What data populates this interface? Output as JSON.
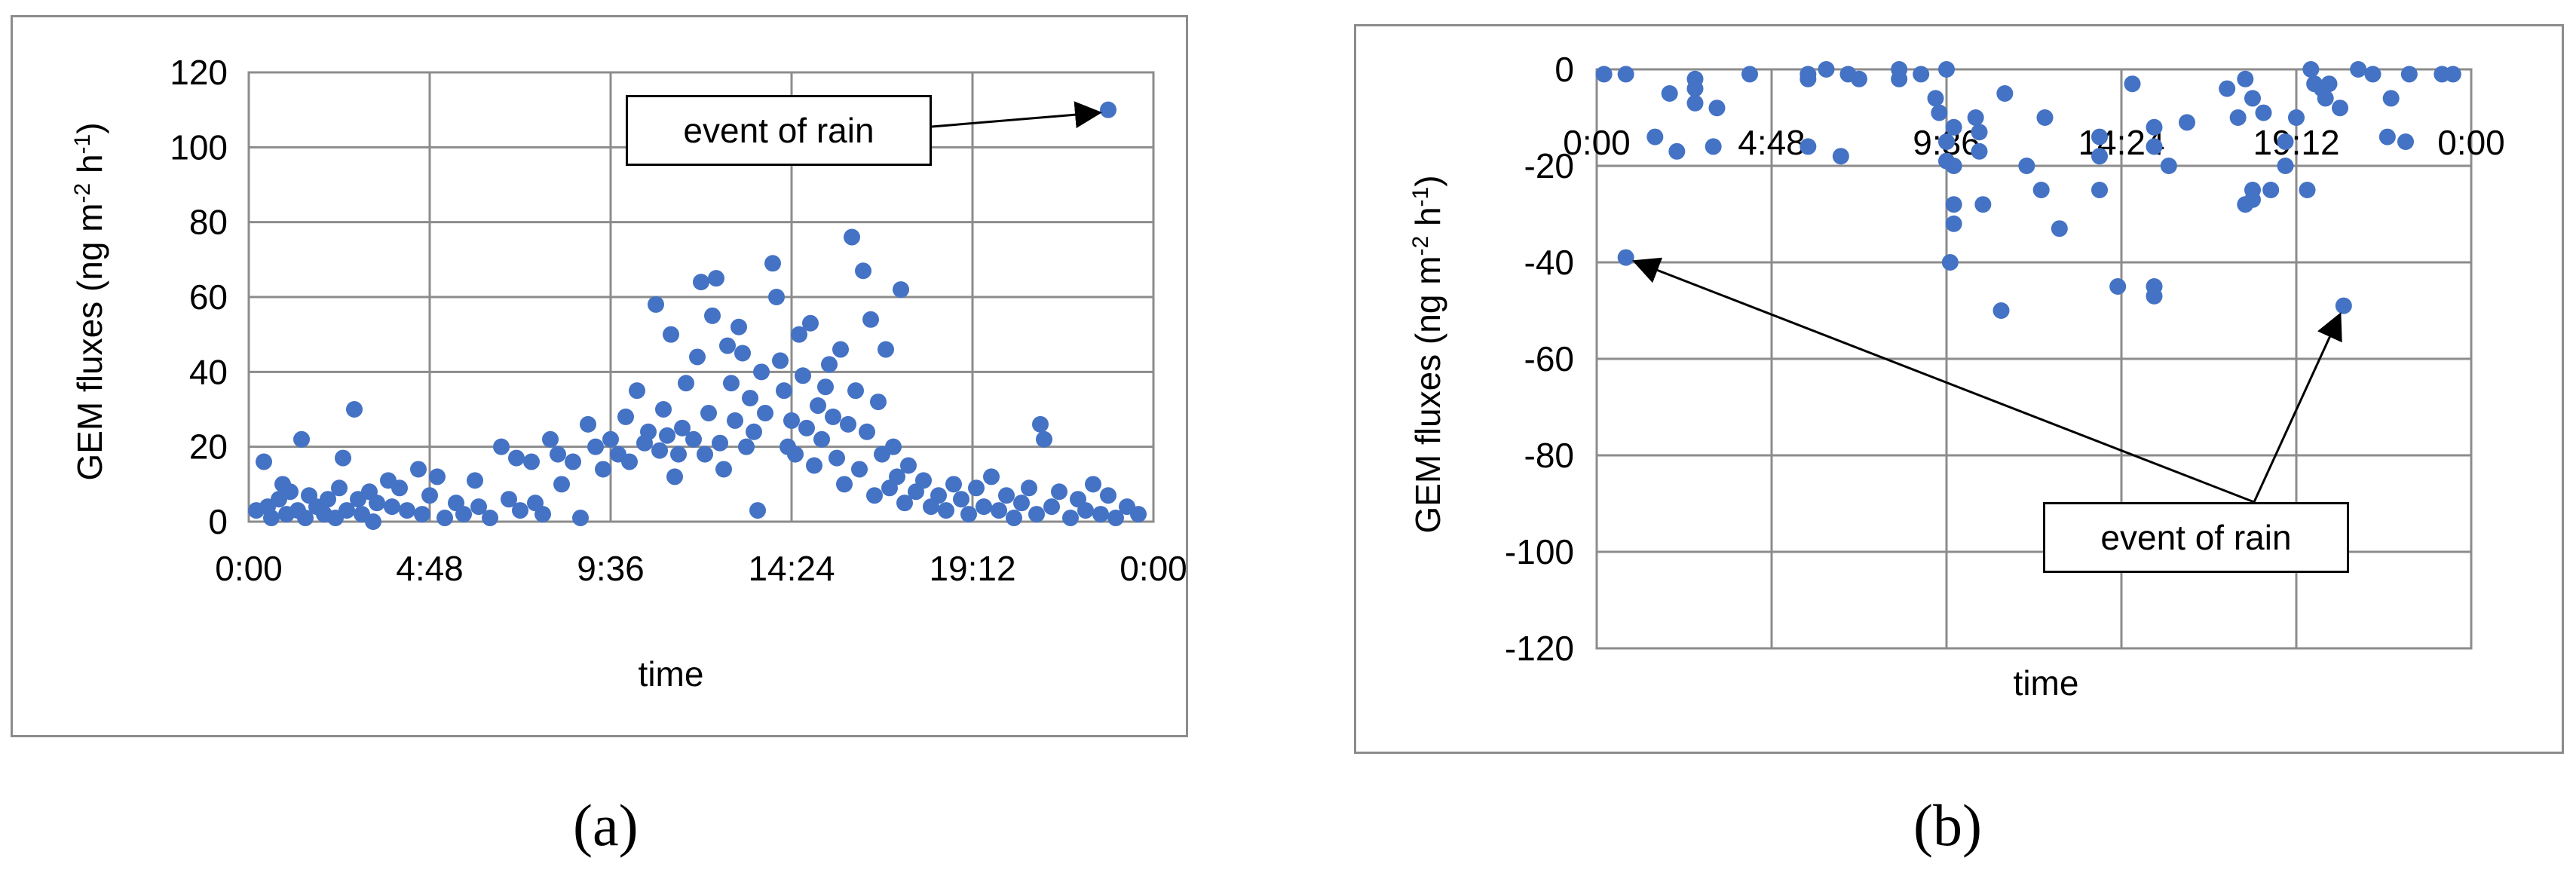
{
  "chart_data": [
    {
      "panel": "(a)",
      "type": "scatter",
      "title": "",
      "xlabel": "time",
      "ylabel": "GEM fluxes (ng m-2 h-1)",
      "ylabel_parts": {
        "main": "GEM fluxes (ng m",
        "exp1": "-2",
        "mid": " h",
        "exp2": "-1",
        "end": ")"
      },
      "xlim": [
        0,
        24
      ],
      "ylim": [
        0,
        120
      ],
      "x_ticks": [
        "0:00",
        "4:48",
        "9:36",
        "14:24",
        "19:12",
        "0:00"
      ],
      "y_ticks": [
        "0",
        "20",
        "40",
        "60",
        "80",
        "100",
        "120"
      ],
      "grid": true,
      "color": "#4472C4",
      "annotation": {
        "text": "event of rain",
        "point": [
          22.8,
          110
        ]
      },
      "points": [
        [
          0.2,
          3
        ],
        [
          0.4,
          16
        ],
        [
          0.5,
          4
        ],
        [
          0.6,
          1
        ],
        [
          0.8,
          6
        ],
        [
          0.9,
          10
        ],
        [
          1.0,
          2
        ],
        [
          1.1,
          8
        ],
        [
          1.3,
          3
        ],
        [
          1.4,
          22
        ],
        [
          1.5,
          1
        ],
        [
          1.6,
          7
        ],
        [
          1.8,
          4
        ],
        [
          2.0,
          2
        ],
        [
          2.1,
          6
        ],
        [
          2.3,
          1
        ],
        [
          2.4,
          9
        ],
        [
          2.5,
          17
        ],
        [
          2.6,
          3
        ],
        [
          2.8,
          30
        ],
        [
          2.9,
          6
        ],
        [
          3.0,
          2
        ],
        [
          3.2,
          8
        ],
        [
          3.3,
          0
        ],
        [
          3.4,
          5
        ],
        [
          3.7,
          11
        ],
        [
          3.8,
          4
        ],
        [
          4.0,
          9
        ],
        [
          4.2,
          3
        ],
        [
          4.5,
          14
        ],
        [
          4.6,
          2
        ],
        [
          4.8,
          7
        ],
        [
          5.0,
          12
        ],
        [
          5.2,
          1
        ],
        [
          5.5,
          5
        ],
        [
          5.7,
          2
        ],
        [
          6.0,
          11
        ],
        [
          6.1,
          4
        ],
        [
          6.4,
          1
        ],
        [
          6.7,
          20
        ],
        [
          6.9,
          6
        ],
        [
          7.1,
          17
        ],
        [
          7.2,
          3
        ],
        [
          7.5,
          16
        ],
        [
          7.6,
          5
        ],
        [
          7.8,
          2
        ],
        [
          8.0,
          22
        ],
        [
          8.2,
          18
        ],
        [
          8.3,
          10
        ],
        [
          8.6,
          16
        ],
        [
          8.8,
          1
        ],
        [
          9.0,
          26
        ],
        [
          9.2,
          20
        ],
        [
          9.4,
          14
        ],
        [
          9.6,
          22
        ],
        [
          9.8,
          18
        ],
        [
          10.0,
          28
        ],
        [
          10.1,
          16
        ],
        [
          10.3,
          35
        ],
        [
          10.5,
          21
        ],
        [
          10.6,
          24
        ],
        [
          10.8,
          58
        ],
        [
          10.9,
          19
        ],
        [
          11.0,
          30
        ],
        [
          11.1,
          23
        ],
        [
          11.2,
          50
        ],
        [
          11.3,
          12
        ],
        [
          11.4,
          18
        ],
        [
          11.5,
          25
        ],
        [
          11.6,
          37
        ],
        [
          11.8,
          22
        ],
        [
          11.9,
          44
        ],
        [
          12.0,
          64
        ],
        [
          12.1,
          18
        ],
        [
          12.2,
          29
        ],
        [
          12.3,
          55
        ],
        [
          12.4,
          65
        ],
        [
          12.5,
          21
        ],
        [
          12.6,
          14
        ],
        [
          12.7,
          47
        ],
        [
          12.8,
          37
        ],
        [
          12.9,
          27
        ],
        [
          13.0,
          52
        ],
        [
          13.1,
          45
        ],
        [
          13.2,
          20
        ],
        [
          13.3,
          33
        ],
        [
          13.4,
          24
        ],
        [
          13.5,
          3
        ],
        [
          13.6,
          40
        ],
        [
          13.7,
          29
        ],
        [
          13.9,
          69
        ],
        [
          14.0,
          60
        ],
        [
          14.1,
          43
        ],
        [
          14.2,
          35
        ],
        [
          14.3,
          20
        ],
        [
          14.4,
          27
        ],
        [
          14.5,
          18
        ],
        [
          14.6,
          50
        ],
        [
          14.7,
          39
        ],
        [
          14.8,
          25
        ],
        [
          14.9,
          53
        ],
        [
          15.0,
          15
        ],
        [
          15.1,
          31
        ],
        [
          15.2,
          22
        ],
        [
          15.3,
          36
        ],
        [
          15.4,
          42
        ],
        [
          15.5,
          28
        ],
        [
          15.6,
          17
        ],
        [
          15.7,
          46
        ],
        [
          15.8,
          10
        ],
        [
          15.9,
          26
        ],
        [
          16.0,
          76
        ],
        [
          16.1,
          35
        ],
        [
          16.2,
          14
        ],
        [
          16.3,
          67
        ],
        [
          16.4,
          24
        ],
        [
          16.5,
          54
        ],
        [
          16.6,
          7
        ],
        [
          16.7,
          32
        ],
        [
          16.8,
          18
        ],
        [
          16.9,
          46
        ],
        [
          17.0,
          9
        ],
        [
          17.1,
          20
        ],
        [
          17.2,
          12
        ],
        [
          17.3,
          62
        ],
        [
          17.4,
          5
        ],
        [
          17.5,
          15
        ],
        [
          17.7,
          8
        ],
        [
          17.9,
          11
        ],
        [
          18.1,
          4
        ],
        [
          18.3,
          7
        ],
        [
          18.5,
          3
        ],
        [
          18.7,
          10
        ],
        [
          18.9,
          6
        ],
        [
          19.1,
          2
        ],
        [
          19.3,
          9
        ],
        [
          19.5,
          4
        ],
        [
          19.7,
          12
        ],
        [
          19.9,
          3
        ],
        [
          20.1,
          7
        ],
        [
          20.3,
          1
        ],
        [
          20.5,
          5
        ],
        [
          20.7,
          9
        ],
        [
          20.9,
          2
        ],
        [
          21.0,
          26
        ],
        [
          21.1,
          22
        ],
        [
          21.3,
          4
        ],
        [
          21.5,
          8
        ],
        [
          21.8,
          1
        ],
        [
          22.0,
          6
        ],
        [
          22.2,
          3
        ],
        [
          22.4,
          10
        ],
        [
          22.6,
          2
        ],
        [
          22.8,
          7
        ],
        [
          23.0,
          1
        ],
        [
          23.3,
          4
        ],
        [
          23.6,
          2
        ],
        [
          22.8,
          110
        ]
      ]
    },
    {
      "panel": "(b)",
      "type": "scatter",
      "title": "",
      "xlabel": "time",
      "ylabel": "GEM fluxes (ng m-2 h-1)",
      "ylabel_parts": {
        "main": "GEM fluxes (ng m",
        "exp1": "-2",
        "mid": " h",
        "exp2": "-1",
        "end": ")"
      },
      "xlim": [
        0,
        24
      ],
      "ylim": [
        -120,
        0
      ],
      "x_ticks": [
        "0:00",
        "4:48",
        "9:36",
        "14:24",
        "19:12",
        "0:00"
      ],
      "y_ticks": [
        "0",
        "-20",
        "-40",
        "-60",
        "-80",
        "-100",
        "-120"
      ],
      "grid": true,
      "color": "#4472C4",
      "annotation": {
        "text": "event of rain",
        "points": [
          [
            0.8,
            -39
          ],
          [
            20.5,
            -49
          ]
        ]
      },
      "points": [
        [
          0.2,
          -1
        ],
        [
          0.8,
          -1
        ],
        [
          1.6,
          -14
        ],
        [
          2.2,
          -17
        ],
        [
          2.0,
          -5
        ],
        [
          2.7,
          -2
        ],
        [
          2.7,
          -4
        ],
        [
          2.7,
          -7
        ],
        [
          3.3,
          -8
        ],
        [
          3.2,
          -16
        ],
        [
          4.2,
          -1
        ],
        [
          5.8,
          -1
        ],
        [
          5.8,
          -2
        ],
        [
          5.8,
          -16
        ],
        [
          6.3,
          0
        ],
        [
          6.7,
          -18
        ],
        [
          6.9,
          -1
        ],
        [
          7.2,
          -2
        ],
        [
          8.3,
          0
        ],
        [
          8.3,
          -2
        ],
        [
          8.9,
          -1
        ],
        [
          9.6,
          0
        ],
        [
          9.3,
          -6
        ],
        [
          9.4,
          -9
        ],
        [
          9.6,
          -15
        ],
        [
          9.6,
          -19
        ],
        [
          9.8,
          -12
        ],
        [
          9.8,
          -20
        ],
        [
          9.8,
          -28
        ],
        [
          9.8,
          -32
        ],
        [
          9.7,
          -40
        ],
        [
          10.4,
          -10
        ],
        [
          10.5,
          -13
        ],
        [
          10.5,
          -17
        ],
        [
          10.6,
          -28
        ],
        [
          11.2,
          -5
        ],
        [
          11.1,
          -50
        ],
        [
          11.8,
          -20
        ],
        [
          12.3,
          -10
        ],
        [
          12.2,
          -25
        ],
        [
          12.7,
          -33
        ],
        [
          13.8,
          -14
        ],
        [
          13.8,
          -18
        ],
        [
          13.8,
          -25
        ],
        [
          14.3,
          -45
        ],
        [
          14.7,
          -3
        ],
        [
          15.3,
          -12
        ],
        [
          15.3,
          -16
        ],
        [
          15.3,
          -45
        ],
        [
          15.3,
          -47
        ],
        [
          15.7,
          -20
        ],
        [
          16.2,
          -11
        ],
        [
          17.3,
          -4
        ],
        [
          17.6,
          -10
        ],
        [
          17.8,
          -2
        ],
        [
          17.8,
          -28
        ],
        [
          18.0,
          -6
        ],
        [
          18.0,
          -25
        ],
        [
          18.0,
          -27
        ],
        [
          18.3,
          -9
        ],
        [
          18.5,
          -25
        ],
        [
          18.9,
          -15
        ],
        [
          18.9,
          -20
        ],
        [
          19.2,
          -10
        ],
        [
          19.5,
          -25
        ],
        [
          19.6,
          0
        ],
        [
          19.7,
          -3
        ],
        [
          19.9,
          -4
        ],
        [
          20.0,
          -6
        ],
        [
          20.1,
          -3
        ],
        [
          20.4,
          -8
        ],
        [
          20.5,
          -49
        ],
        [
          20.9,
          0
        ],
        [
          21.3,
          -1
        ],
        [
          21.8,
          -6
        ],
        [
          21.7,
          -14
        ],
        [
          22.2,
          -15
        ],
        [
          22.3,
          -1
        ],
        [
          23.2,
          -1
        ],
        [
          23.5,
          -1
        ],
        [
          0.8,
          -39
        ]
      ]
    }
  ],
  "captions": {
    "a": "(a)",
    "b": "(b)"
  }
}
